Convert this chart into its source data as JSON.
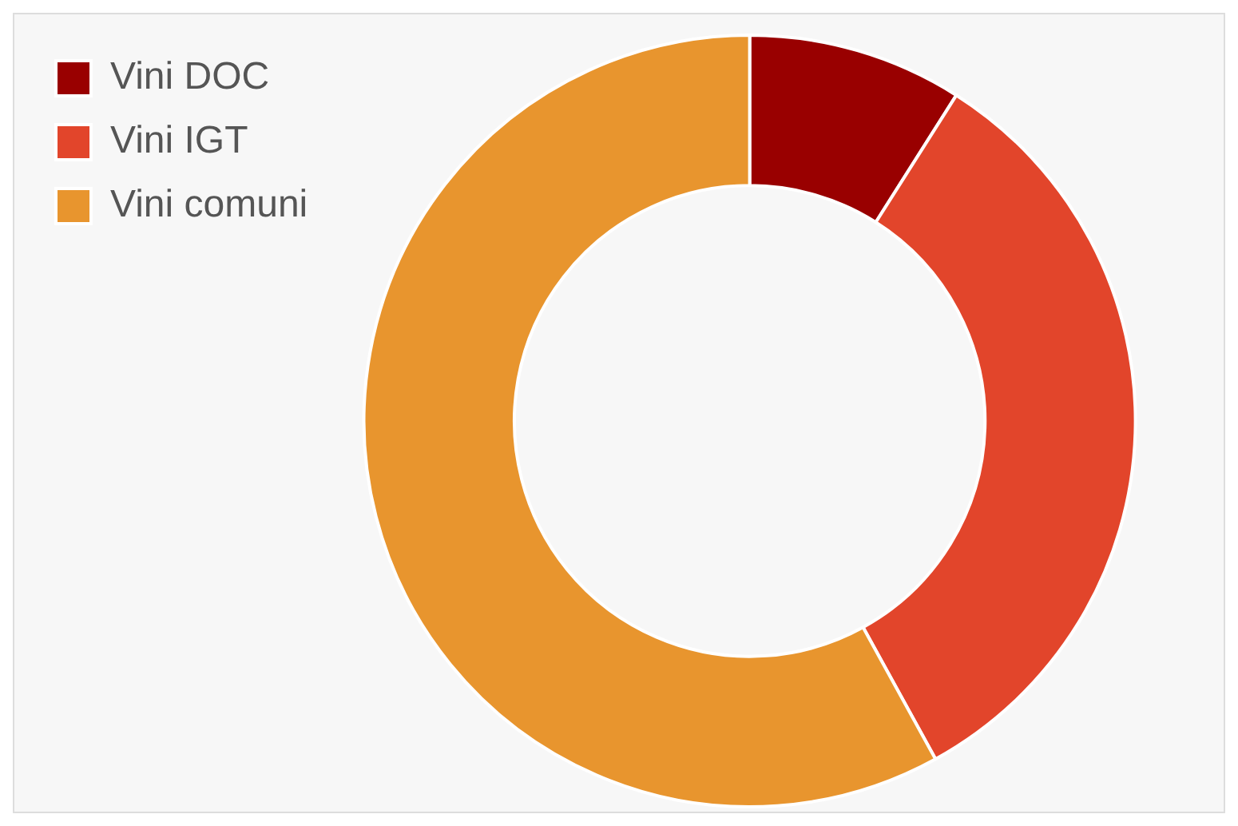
{
  "chart_data": {
    "type": "donut",
    "categories": [
      "Vini DOC",
      "Vini IGT",
      "Vini comuni"
    ],
    "values": [
      9,
      33,
      58
    ],
    "colors": [
      "#990000",
      "#e2452b",
      "#e8952e"
    ],
    "legend": "top left"
  }
}
